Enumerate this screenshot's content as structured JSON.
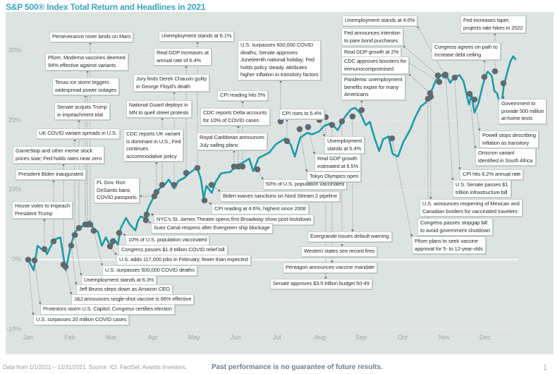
{
  "title": "S&P 500® Index Total Return and Headlines in 2021",
  "footer": {
    "source": "Data from 1/1/2021 – 12/31/2021. Source: ICI, FactSet, Avantis Investors.",
    "disclaimer": "Past performance is no guarantee of future results.",
    "page": "1"
  },
  "colors": {
    "line": "#1a9ca9",
    "dot": "#5d6a6f",
    "title": "#3aa3c2",
    "background": "#dde3e1"
  },
  "chart_data": {
    "type": "line",
    "title": "S&P 500® Index Total Return and Headlines in 2021",
    "xlabel": "",
    "ylabel": "",
    "x_unit": "day of year 2021",
    "ylim": [
      -10,
      30
    ],
    "y_ticks": [
      "30%",
      "20%",
      "10%",
      "0%",
      "-10%"
    ],
    "x_ticks": [
      "Jan",
      "Feb",
      "Mar",
      "Apr",
      "May",
      "Jun",
      "Jul",
      "Aug",
      "Sep",
      "Oct",
      "Nov",
      "Dec"
    ],
    "grid": true,
    "series": [
      {
        "name": "S&P 500 Index Total Return (%)",
        "points": [
          [
            1,
            0
          ],
          [
            5,
            -1.5
          ],
          [
            8,
            2
          ],
          [
            11,
            1.5
          ],
          [
            13,
            1.8
          ],
          [
            15,
            0.8
          ],
          [
            19,
            2.4
          ],
          [
            22,
            3
          ],
          [
            25,
            3.2
          ],
          [
            27,
            0.8
          ],
          [
            29,
            -1.5
          ],
          [
            33,
            2.2
          ],
          [
            36,
            4
          ],
          [
            40,
            4.6
          ],
          [
            43,
            5
          ],
          [
            47,
            5.5
          ],
          [
            50,
            4.4
          ],
          [
            53,
            4
          ],
          [
            56,
            2
          ],
          [
            59,
            3.2
          ],
          [
            63,
            1.6
          ],
          [
            65,
            3
          ],
          [
            68,
            2.2
          ],
          [
            70,
            4.5
          ],
          [
            74,
            6
          ],
          [
            77,
            5
          ],
          [
            81,
            4.2
          ],
          [
            83,
            5.6
          ],
          [
            85,
            6.2
          ],
          [
            88,
            6
          ],
          [
            91,
            7.6
          ],
          [
            96,
            9.5
          ],
          [
            99,
            10.2
          ],
          [
            103,
            10.8
          ],
          [
            106,
            11.5
          ],
          [
            110,
            10.2
          ],
          [
            113,
            11.3
          ],
          [
            118,
            11.8
          ],
          [
            121,
            12.4
          ],
          [
            124,
            12.8
          ],
          [
            127,
            13.3
          ],
          [
            130,
            11.5
          ],
          [
            132,
            8.8
          ],
          [
            134,
            10.6
          ],
          [
            138,
            9.6
          ],
          [
            141,
            11.2
          ],
          [
            145,
            12.4
          ],
          [
            152,
            12.6
          ],
          [
            156,
            13.5
          ],
          [
            161,
            13.9
          ],
          [
            166,
            14.5
          ],
          [
            169,
            12.7
          ],
          [
            173,
            14.6
          ],
          [
            178,
            15.1
          ],
          [
            181,
            15.4
          ],
          [
            186,
            16.6
          ],
          [
            193,
            17.4
          ],
          [
            197,
            16.5
          ],
          [
            200,
            14.8
          ],
          [
            204,
            17.5
          ],
          [
            209,
            18.2
          ],
          [
            213,
            18
          ],
          [
            218,
            18.4
          ],
          [
            222,
            19.2
          ],
          [
            227,
            19.6
          ],
          [
            232,
            18.6
          ],
          [
            237,
            20.4
          ],
          [
            242,
            21.6
          ],
          [
            245,
            21.8
          ],
          [
            249,
            21
          ],
          [
            253,
            19.3
          ],
          [
            256,
            19.8
          ],
          [
            260,
            17.2
          ],
          [
            263,
            15.6
          ],
          [
            266,
            17.3
          ],
          [
            270,
            17.7
          ],
          [
            273,
            15.2
          ],
          [
            277,
            14.8
          ],
          [
            281,
            16.9
          ],
          [
            286,
            18.6
          ],
          [
            290,
            20.5
          ],
          [
            294,
            22
          ],
          [
            298,
            22.6
          ],
          [
            302,
            24.2
          ],
          [
            305,
            25.6
          ],
          [
            309,
            26.4
          ],
          [
            312,
            26.9
          ],
          [
            316,
            25.4
          ],
          [
            319,
            26.2
          ],
          [
            323,
            26.5
          ],
          [
            326,
            25.6
          ],
          [
            330,
            22.3
          ],
          [
            332,
            23.7
          ],
          [
            334,
            21.1
          ],
          [
            337,
            22.4
          ],
          [
            340,
            24.8
          ],
          [
            342,
            26.2
          ],
          [
            344,
            27
          ],
          [
            347,
            26.4
          ],
          [
            349,
            24.2
          ],
          [
            351,
            23.9
          ],
          [
            354,
            21.7
          ],
          [
            356,
            24.9
          ],
          [
            359,
            27.2
          ],
          [
            361,
            28.5
          ],
          [
            363,
            29.2
          ],
          [
            365,
            28.7
          ]
        ]
      }
    ]
  },
  "events": [
    "Perseverance rover lands on Mars",
    "Pfizer, Moderna vaccines deemed\n94% effective against variants",
    "Texas ice storm triggers\nwidespread power outages",
    "Senate acquits Trump\nin impeachment trial",
    "UK COVID variant spreads in U.S.",
    "GameStop and other meme stock\nprices soar; Fed holds rates near zero",
    "President Biden inaugurated",
    "House votes to impeach\nPresident Trump",
    "FL Gov. Ron\nDeSantis bans\nCOVID passports",
    "Unemployment stands at 6.1%",
    "Real GDP increases at\nannual rate of 6.4%",
    "Jury finds Derek Chauvin guilty\nin George Floyd's death",
    "National Guard deploys in\nMN to quell street protests",
    "CDC reports UK variant\nis dominant in U.S.; Fed\ncontinues\naccommodative policy",
    "U.S. surpasses 600,000 COVID\ndeaths; Senate approves\nJuneteenth national holiday; Fed\nholds policy steady, attributes\nhigher inflation to transitory factors",
    "CPI reading hits 5%",
    "CDC reports Delta accounts\nfor 10% of COVID cases",
    "Royal Caribbean announces\nJuly sailing plans",
    "CPI rises to 5.4%",
    "50% of U.S. population vaccinated",
    "Biden waives sanctions on Nord Stream 2 pipeline",
    "CPI reading at 4.6%, highest since 2008",
    "NYC's St. James Theatre opens first Broadway show post-lockdown",
    "Suez Canal reopens after Evergreen ship blockage",
    "10% of U.S. population vaccinated",
    "Congress passes $1.9 trillion COVID relief bill",
    "U.S. adds 117,000  jobs in February, fewer than expected",
    "U.S. surpasses 500,000 COVID deaths",
    "Unemployment stands at 6.3%",
    "Jeff Bezos steps down as Amazon CEO",
    "J&J announces single-shot vaccine is 66% effective",
    "Protestors storm U.S. Capitol, Congress certifies election",
    "U.S. surpasses 20 million COVID cases",
    "Unemployment stands at 4.6%",
    "Fed announces intention\nto pare bond purchases",
    "Real GDP growth at 2%",
    "CDC approves boosters for\nimmunocompromised",
    "Pandemic unemployment\nbenefits expire for many\nAmericans",
    "Fed increases taper,\nprojects rate hikes in 2022",
    "Congress agrees on path to\nincrease debt ceiling",
    "Government to\nprovide 500 million\nat-home tests",
    "Powell stops describing\ninflation as transitory",
    "Omicron variant\nidentified in South Africa",
    "CPI hits 6.2% annual rate",
    "U.S. Senate passes $1\ntrillion infrastructure bill",
    "U.S. announces reopening of Mexican and\nCanadian borders for vaccinated travelers",
    "Congress passes stopgap bill\nto avoid government shutdown",
    "Pfizer plans to seek vaccine\napproval for 5- to 12-year-olds",
    "Evergrande issues default warning",
    "Western states see record fires",
    "Pentagon announces vaccine mandate",
    "Senate approves $3.5 trillion budget 50-49",
    "Unemployment\nstands at 5.4%",
    "Real GDP growth\nestimated at 6.5%",
    "Tokyo Olympics open"
  ]
}
